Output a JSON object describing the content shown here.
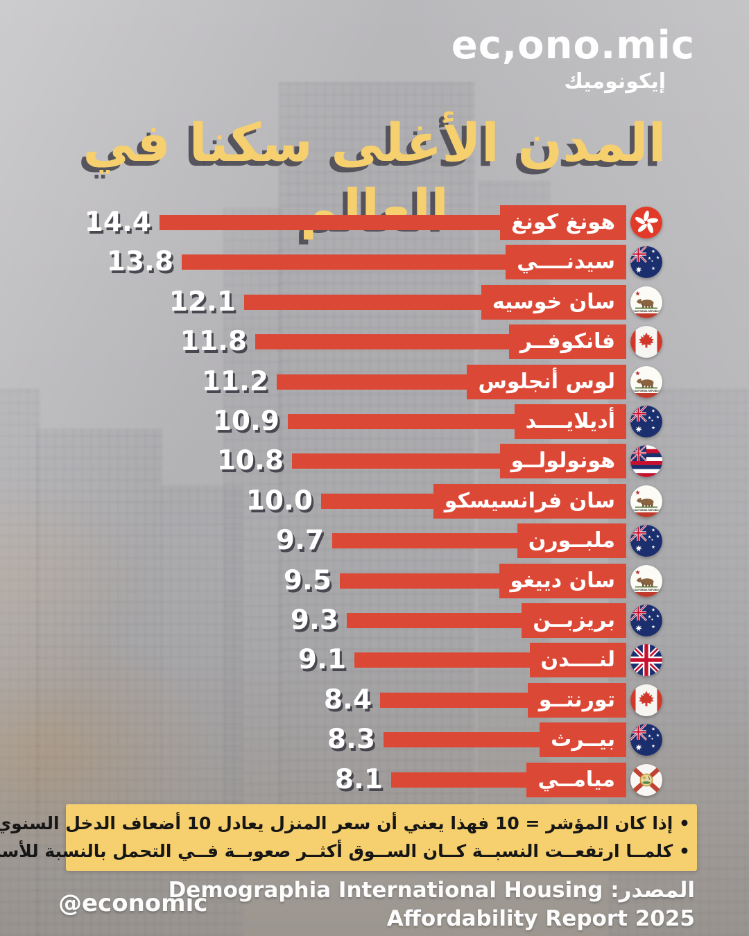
{
  "logo": {
    "title": "ec,ono.mic",
    "subtitle": "إيكونوميك"
  },
  "page_title": "المدن الأغلى سكنا في العالم",
  "colors": {
    "accent_red": "#dc4836",
    "title_yellow": "#f6cf6e",
    "background_gray": "#b3b2b5",
    "text_white": "#ffffff",
    "note_text": "#161616"
  },
  "chart_data": {
    "type": "bar",
    "orientation": "horizontal-rtl",
    "title": "المدن الأغلى سكنا في العالم",
    "legend": "none",
    "grid": false,
    "value_labels": "at-bar-end",
    "value_precision": 1,
    "categories": [
      "هونغ كونغ",
      "سيدنــــي",
      "سان خوسيه",
      "فانكوفــر",
      "لوس أنجلوس",
      "أديلايــــد",
      "هونولولــو",
      "سان فرانسيسكو",
      "ملبــورن",
      "سان دييغو",
      "بريزبــن",
      "لنــــدن",
      "تورنتــو",
      "بيــرث",
      "ميامــي"
    ],
    "values": [
      14.4,
      13.8,
      12.1,
      11.8,
      11.2,
      10.9,
      10.8,
      10.0,
      9.7,
      9.5,
      9.3,
      9.1,
      8.4,
      8.3,
      8.1
    ],
    "flags": [
      "hong-kong",
      "australia",
      "california",
      "canada",
      "california",
      "australia",
      "hawaii",
      "california",
      "australia",
      "california",
      "australia",
      "uk",
      "canada",
      "australia",
      "florida"
    ]
  },
  "note": {
    "lines": [
      "• إذا كان المؤشر = 10 فهذا يعني أن سعر المنزل يعادل 10 أضعاف الدخل السنوي المتوسط",
      "• كلمــا ارتفعــت النسبــة كــان الســوق أكثــر صعوبــة فــي التحمل بالنسبة للأسر"
    ]
  },
  "footer": {
    "handle": "@economic",
    "source_line1": "المصدر: Demographia International Housing",
    "source_line2": "Affordability Report 2025"
  }
}
